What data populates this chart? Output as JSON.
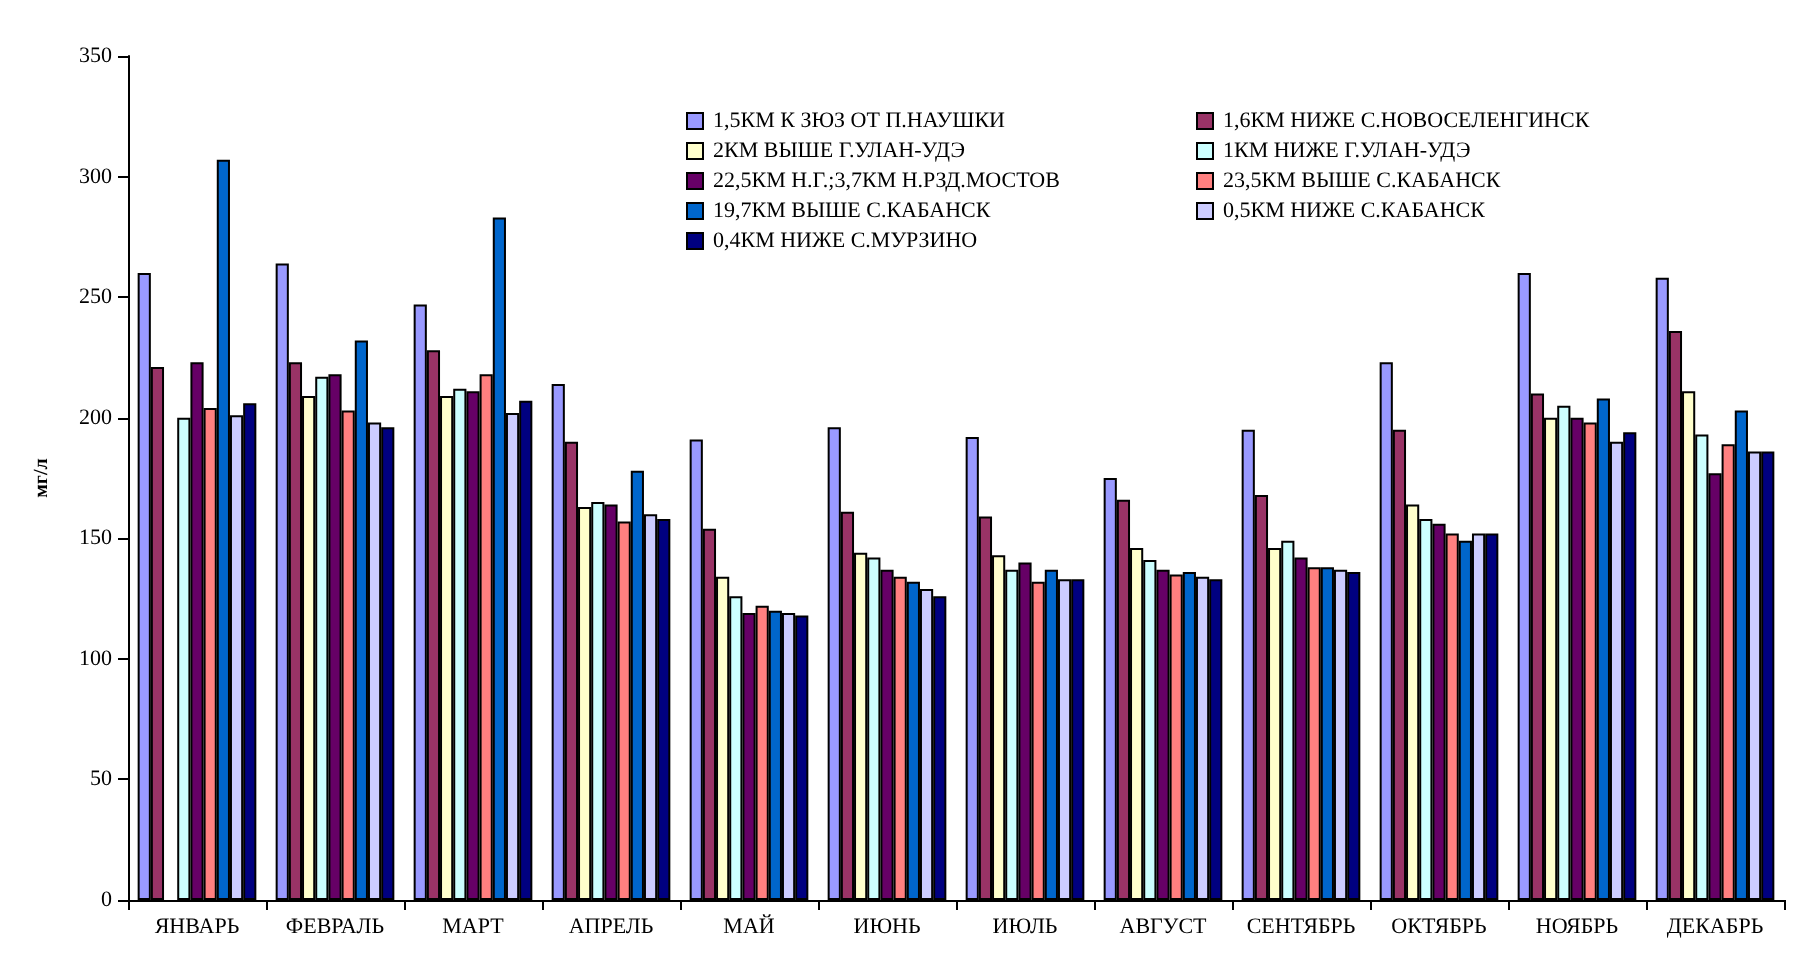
{
  "chart_data": {
    "type": "bar",
    "ylabel": "мг/л",
    "categories": [
      "ЯНВАРЬ",
      "ФЕВРАЛЬ",
      "МАРТ",
      "АПРЕЛЬ",
      "МАЙ",
      "ИЮНЬ",
      "ИЮЛЬ",
      "АВГУСТ",
      "СЕНТЯБРЬ",
      "ОКТЯБРЬ",
      "НОЯБРЬ",
      "ДЕКАБРЬ"
    ],
    "series": [
      {
        "name": "1,5КМ К ЗЮЗ ОТ П.НАУШКИ",
        "color": "#9999ff",
        "values": [
          260,
          264,
          247,
          214,
          191,
          196,
          192,
          175,
          195,
          223,
          260,
          258
        ]
      },
      {
        "name": "1,6КМ НИЖЕ С.НОВОСЕЛЕНГИНСК",
        "color": "#993366",
        "values": [
          221,
          223,
          228,
          190,
          154,
          161,
          159,
          166,
          168,
          195,
          210,
          236
        ]
      },
      {
        "name": "2КМ ВЫШЕ Г.УЛАН-УДЭ",
        "color": "#ffffcc",
        "values": [
          null,
          209,
          209,
          163,
          134,
          144,
          143,
          146,
          146,
          164,
          200,
          211
        ]
      },
      {
        "name": "1КМ НИЖЕ Г.УЛАН-УДЭ",
        "color": "#ccffff",
        "values": [
          200,
          217,
          212,
          165,
          126,
          142,
          137,
          141,
          149,
          158,
          205,
          193
        ]
      },
      {
        "name": "22,5КМ Н.Г.;3,7КМ Н.РЗД.МОСТОВ",
        "color": "#660066",
        "values": [
          223,
          218,
          211,
          164,
          119,
          137,
          140,
          137,
          142,
          156,
          200,
          177
        ]
      },
      {
        "name": "23,5КМ ВЫШЕ С.КАБАНСК",
        "color": "#ff8080",
        "values": [
          204,
          203,
          218,
          157,
          122,
          134,
          132,
          135,
          138,
          152,
          198,
          189
        ]
      },
      {
        "name": "19,7КМ ВЫШЕ С.КАБАНСК",
        "color": "#0066cc",
        "values": [
          307,
          232,
          283,
          178,
          120,
          132,
          137,
          136,
          138,
          149,
          208,
          203
        ]
      },
      {
        "name": "0,5КМ НИЖЕ С.КАБАНСК",
        "color": "#ccccff",
        "values": [
          201,
          198,
          202,
          160,
          119,
          129,
          133,
          134,
          137,
          152,
          190,
          186
        ]
      },
      {
        "name": "0,4КМ НИЖЕ С.МУРЗИНО",
        "color": "#000080",
        "values": [
          206,
          196,
          207,
          158,
          118,
          126,
          133,
          133,
          136,
          152,
          194,
          186
        ]
      }
    ],
    "ylim": [
      0,
      350
    ],
    "yticks": [
      0,
      50,
      100,
      150,
      200,
      250,
      300,
      350
    ],
    "legend": "top right"
  }
}
